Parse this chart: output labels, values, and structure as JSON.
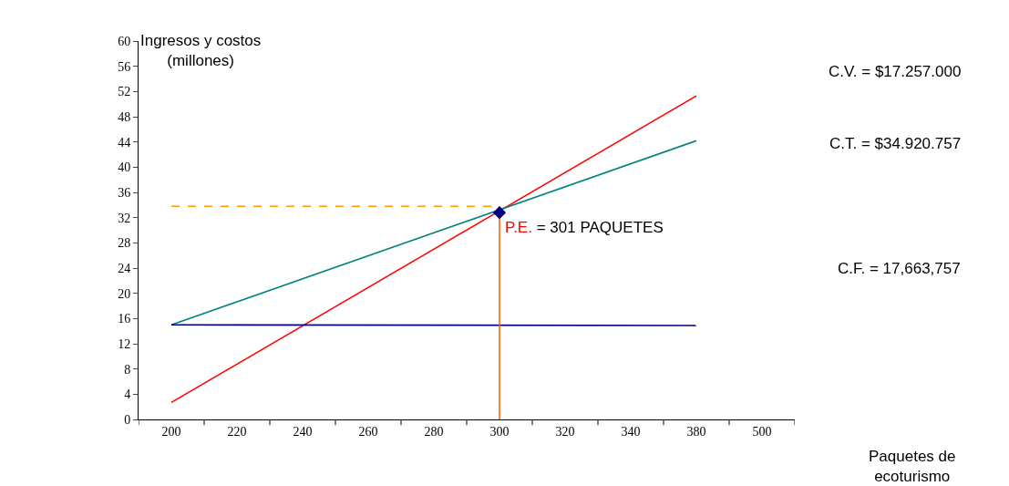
{
  "chart_data": {
    "type": "line",
    "ylabel": "Ingresos y costos\n(millones)",
    "xlabel": "Paquetes de\necoturismo",
    "categories": [
      "200",
      "220",
      "240",
      "260",
      "280",
      "300",
      "320",
      "340",
      "380",
      "500"
    ],
    "ylim": [
      0,
      60
    ],
    "yticks": [
      0,
      4,
      8,
      12,
      16,
      20,
      24,
      28,
      32,
      36,
      40,
      44,
      48,
      52,
      56,
      60
    ],
    "series": [
      {
        "color": "#ff0000",
        "x": [
          "200",
          "380"
        ],
        "values": [
          2.7,
          51.3
        ]
      },
      {
        "color": "#008080",
        "x": [
          "200",
          "380"
        ],
        "values": [
          15.0,
          44.2
        ]
      },
      {
        "color": "#000080",
        "x": [
          "200",
          "380"
        ],
        "values": [
          15.0,
          14.9
        ]
      },
      {
        "color": "#ff9900",
        "x": [
          "200",
          "300"
        ],
        "values": [
          33.8,
          33.8
        ],
        "line_style": "dashed"
      },
      {
        "color": "#ff6600",
        "x": [
          "300",
          "300"
        ],
        "values": [
          0,
          33.8
        ]
      },
      {
        "type": "scatter",
        "color": "#000080",
        "x": [
          "300"
        ],
        "values": [
          32.8
        ],
        "marker": "diamond"
      }
    ],
    "annotations": [
      {
        "text": "P.E. = 301 PAQUETES",
        "x": "300",
        "y": 30.5
      },
      "C.V. = $17.257.000",
      "C.T. = $34.920.757",
      "C.F. = 17,663,757"
    ],
    "marker": "none",
    "line_style": "solid"
  }
}
